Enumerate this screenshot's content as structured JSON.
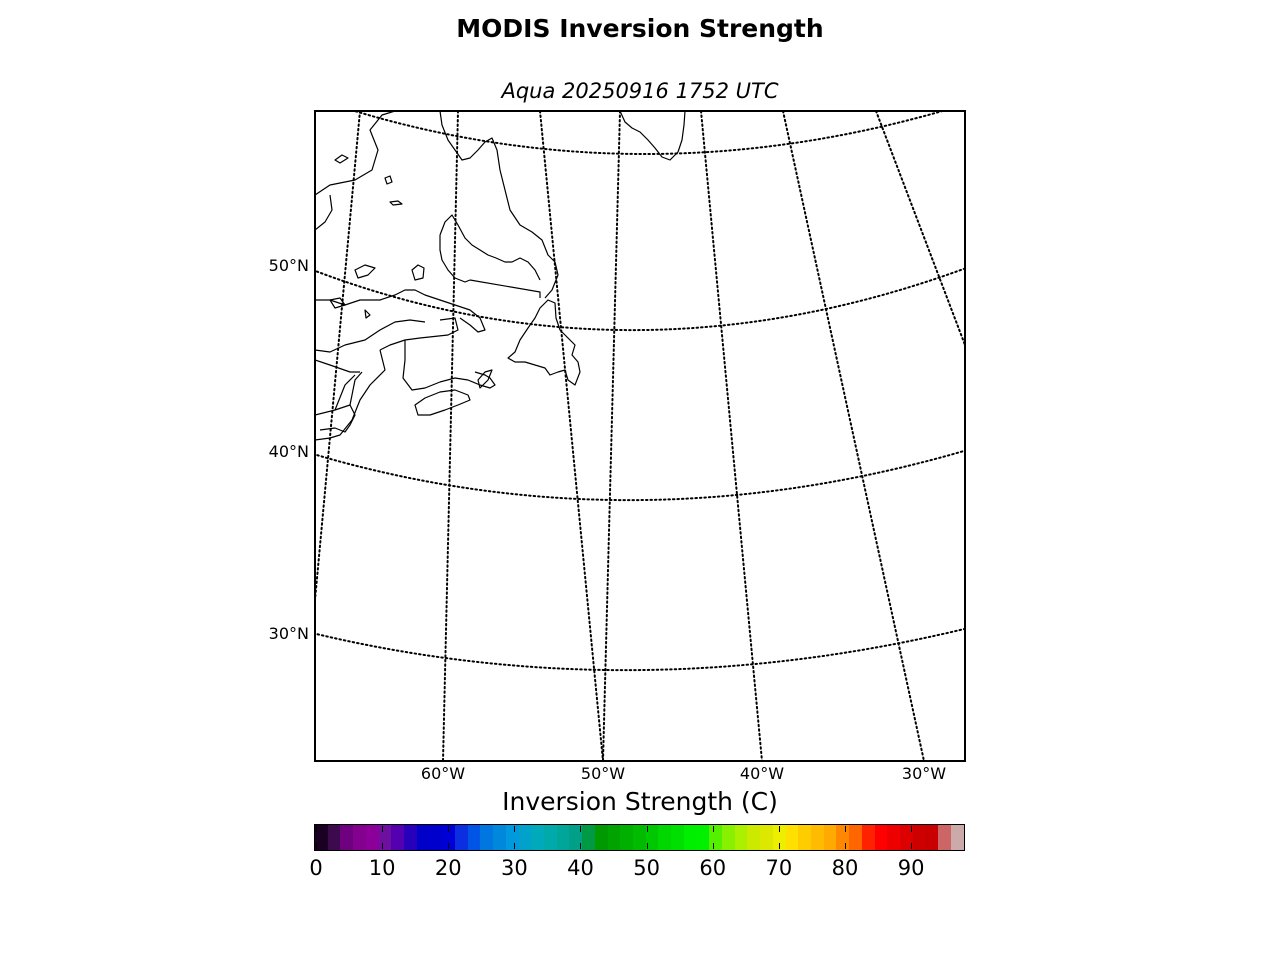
{
  "title": "MODIS Inversion Strength",
  "subtitle": "Aqua 20250916 1752 UTC",
  "map": {
    "lat_labels": [
      "50°N",
      "40°N",
      "30°N"
    ],
    "lon_labels": [
      "60°W",
      "50°W",
      "40°W",
      "30°W"
    ],
    "graticule_style": "dotted",
    "coastline_color": "#000000"
  },
  "colorbar": {
    "title": "Inversion Strength (C)",
    "tick_labels": [
      "0",
      "10",
      "20",
      "30",
      "40",
      "50",
      "60",
      "70",
      "80",
      "90"
    ],
    "range": [
      0,
      98
    ],
    "colors": [
      "#1a0022",
      "#3d0a4e",
      "#6f007f",
      "#84008f",
      "#8c0099",
      "#6d10a0",
      "#5500b0",
      "#2800bb",
      "#0000c8",
      "#0000cc",
      "#0000d6",
      "#0a2ee0",
      "#0055e6",
      "#0077e0",
      "#0088dd",
      "#0099dd",
      "#00a2cc",
      "#00aabb",
      "#00aaaa",
      "#00a699",
      "#00a088",
      "#009944",
      "#009900",
      "#00a300",
      "#00b000",
      "#00bb00",
      "#00c800",
      "#00d600",
      "#00e000",
      "#00ee00",
      "#00f000",
      "#55f000",
      "#88f000",
      "#aaf000",
      "#ccea00",
      "#dde800",
      "#eeee00",
      "#ffe000",
      "#ffcc00",
      "#ffbb00",
      "#ffaa00",
      "#ff8800",
      "#ff6600",
      "#ff2200",
      "#ff0000",
      "#ee0000",
      "#dd0000",
      "#cc0000",
      "#c80000",
      "#cc6666",
      "#ccaaaa"
    ]
  }
}
